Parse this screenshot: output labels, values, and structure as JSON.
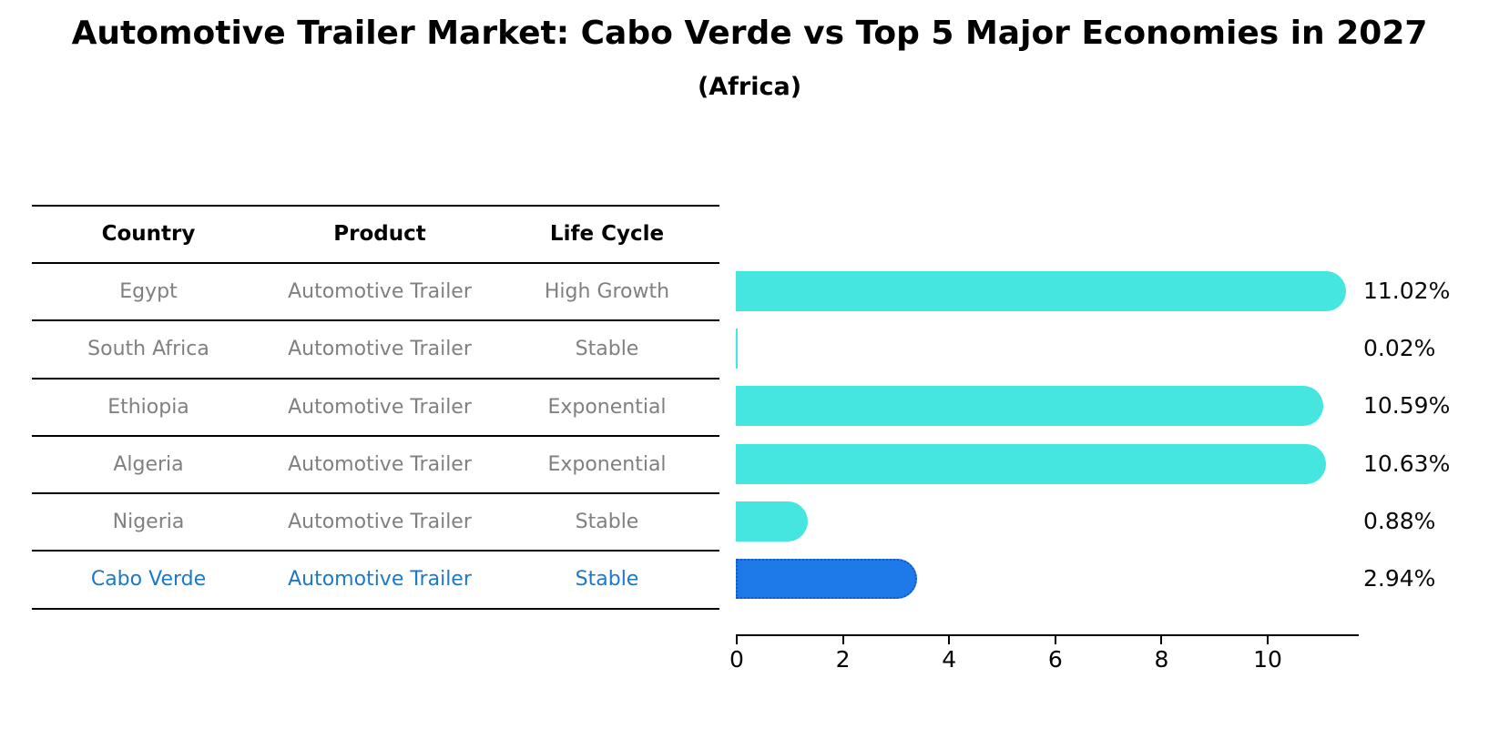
{
  "title": "Automotive Trailer Market: Cabo Verde vs Top 5 Major Economies in 2027",
  "subtitle": "(Africa)",
  "table": {
    "columns": [
      "Country",
      "Product",
      "Life Cycle"
    ],
    "rows": [
      {
        "country": "Egypt",
        "product": "Automotive Trailer",
        "life_cycle": "High Growth",
        "highlighted": false
      },
      {
        "country": "South Africa",
        "product": "Automotive Trailer",
        "life_cycle": "Stable",
        "highlighted": false
      },
      {
        "country": "Ethiopia",
        "product": "Automotive Trailer",
        "life_cycle": "Exponential",
        "highlighted": false
      },
      {
        "country": "Algeria",
        "product": "Automotive Trailer",
        "life_cycle": "Exponential",
        "highlighted": false
      },
      {
        "country": "Nigeria",
        "product": "Automotive Trailer",
        "life_cycle": "Stable",
        "highlighted": false
      },
      {
        "country": "Cabo Verde",
        "product": "Automotive Trailer",
        "life_cycle": "Stable",
        "highlighted": true
      }
    ]
  },
  "chart_data": {
    "type": "bar",
    "orientation": "horizontal",
    "title": "Automotive Trailer Market: Cabo Verde vs Top 5 Major Economies in 2027",
    "subtitle": "(Africa)",
    "categories": [
      "Egypt",
      "South Africa",
      "Ethiopia",
      "Algeria",
      "Nigeria",
      "Cabo Verde"
    ],
    "values": [
      11.02,
      0.02,
      10.59,
      10.63,
      0.88,
      2.94
    ],
    "value_labels": [
      "11.02%",
      "0.02%",
      "10.59%",
      "10.63%",
      "0.88%",
      "2.94%"
    ],
    "xlabel": "",
    "ylabel": "",
    "xlim": [
      0,
      11.7
    ],
    "xticks": [
      0,
      2,
      4,
      6,
      8,
      10
    ],
    "grid": false,
    "legend": false,
    "highlight_index": 5,
    "colors": {
      "bar": "#45E5E0",
      "highlight_bar": "#1E7AE8",
      "highlight_border": "#1456C8",
      "highlight_text": "#1E78C8",
      "row_text": "#808080",
      "axis": "#000000"
    }
  }
}
